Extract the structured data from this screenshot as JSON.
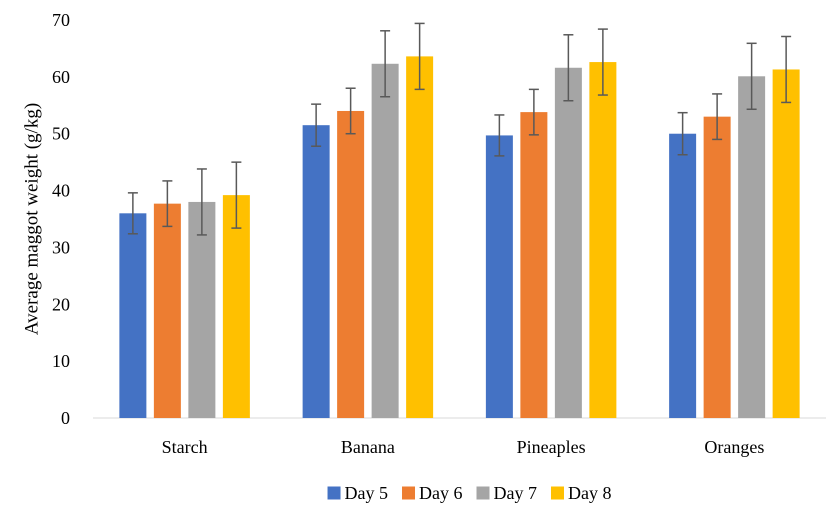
{
  "chart_data": {
    "type": "bar",
    "title": "",
    "xlabel": "",
    "ylabel": "Average maggot weight (g/kg)",
    "ylim": [
      0,
      70
    ],
    "yticks": [
      0,
      10,
      20,
      30,
      40,
      50,
      60,
      70
    ],
    "grid": false,
    "legend_position": "bottom",
    "error_bars": true,
    "categories": [
      "Starch",
      "Banana",
      "Pineaples",
      "Oranges"
    ],
    "series": [
      {
        "name": "Day 5",
        "color": "#4472C4",
        "values": [
          36.0,
          51.5,
          49.7,
          50.0
        ],
        "errors": [
          3.6,
          3.7,
          3.6,
          3.7
        ]
      },
      {
        "name": "Day 6",
        "color": "#ED7D31",
        "values": [
          37.7,
          54.0,
          53.8,
          53.0
        ],
        "errors": [
          4.0,
          4.0,
          4.0,
          4.0
        ]
      },
      {
        "name": "Day 7",
        "color": "#A5A5A5",
        "values": [
          38.0,
          62.3,
          61.6,
          60.1
        ],
        "errors": [
          5.8,
          5.8,
          5.8,
          5.8
        ]
      },
      {
        "name": "Day 8",
        "color": "#FFC000",
        "values": [
          39.2,
          63.6,
          62.6,
          61.3
        ],
        "errors": [
          5.8,
          5.8,
          5.8,
          5.8
        ]
      }
    ]
  }
}
